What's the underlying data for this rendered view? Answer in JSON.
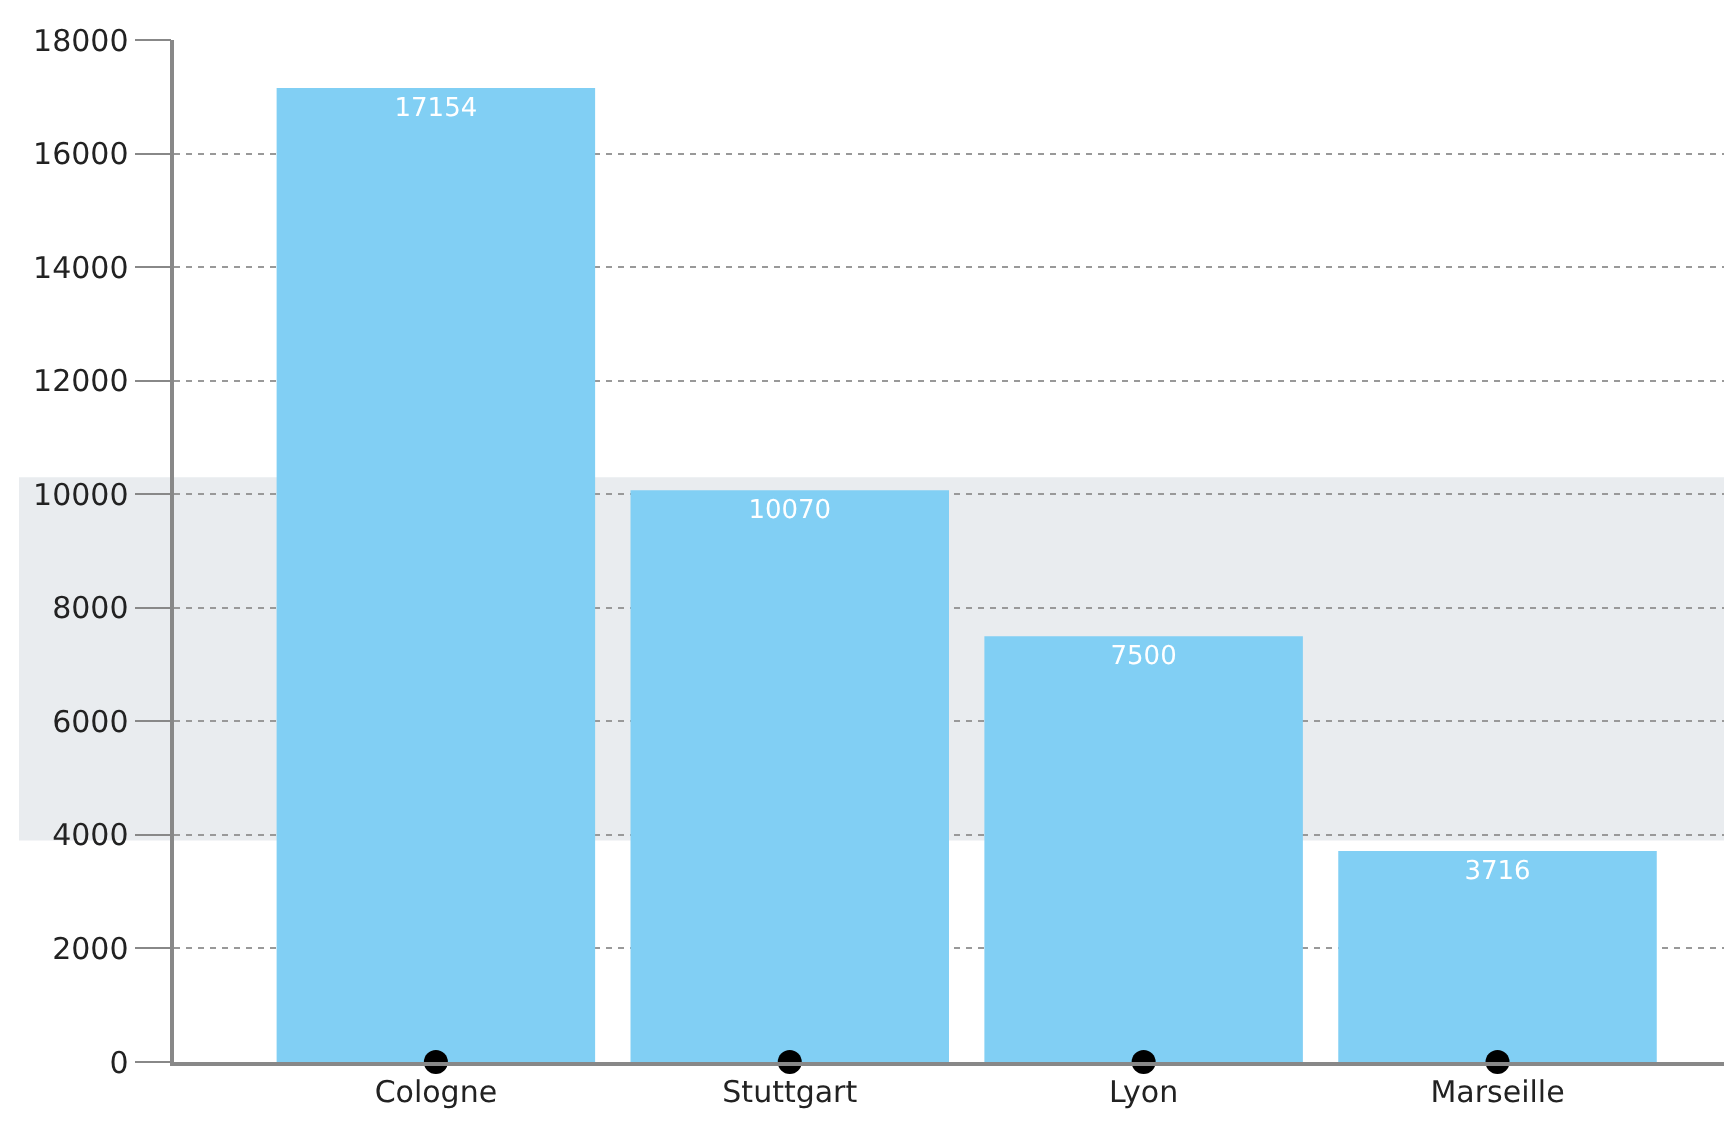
{
  "chart_data": {
    "type": "bar",
    "categories": [
      "Cologne",
      "Stuttgart",
      "Lyon",
      "Marseille"
    ],
    "series": [
      {
        "color": "#81cff4",
        "values": [
          17154,
          10070,
          7500,
          3716
        ],
        "value_labels": [
          "17154",
          "10070",
          "7500",
          "3716"
        ]
      },
      {
        "type": "scatter",
        "color": "#000000",
        "values": [
          0,
          0,
          0,
          0
        ]
      }
    ],
    "ylim": [
      0,
      18000
    ],
    "yticks": [
      0,
      2000,
      4000,
      6000,
      8000,
      10000,
      12000,
      14000,
      16000,
      18000
    ],
    "grid": "y",
    "bands": [
      {
        "axis": "y",
        "from": 3900,
        "to": 10300,
        "color": "#e9ecef"
      }
    ],
    "legend": false
  }
}
